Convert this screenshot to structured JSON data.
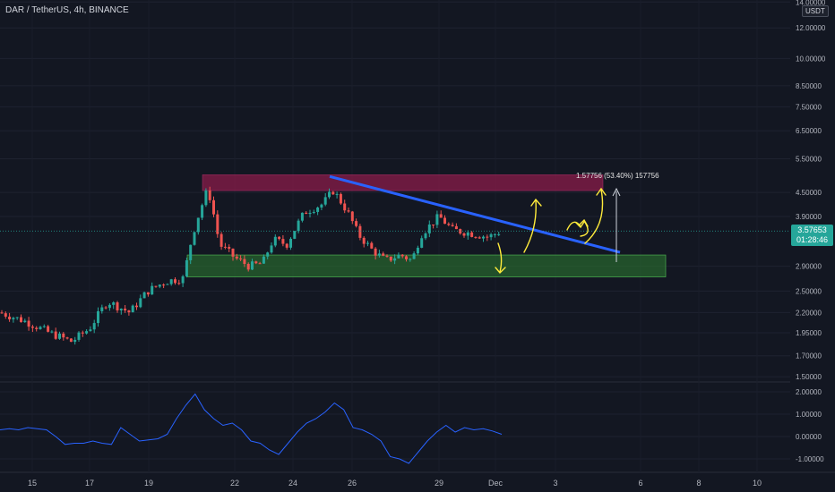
{
  "header": {
    "title": "DAR / TetherUS, 4h, BINANCE",
    "currency": "USDT"
  },
  "current_price": {
    "value": "3.57653",
    "countdown": "01:28:46",
    "color": "#26a69a"
  },
  "measure_label": "1.57756 (53.40%) 157756",
  "colors": {
    "background": "#131722",
    "up": "#26a69a",
    "down": "#ef5350",
    "resistance_zone": "#8a1c4a",
    "support_zone": "#2e7d32",
    "trendline": "#2962ff",
    "annotations": "#ffeb3b",
    "indicator": "#2962ff"
  },
  "chart_data": [
    {
      "type": "candlestick",
      "title": "DAR / TetherUS, 4h, BINANCE",
      "y_scale": "log",
      "y_ticks": [
        "14.00000",
        "12.00000",
        "10.00000",
        "8.50000",
        "7.50000",
        "6.50000",
        "5.50000",
        "4.50000",
        "3.90000",
        "2.90000",
        "2.50000",
        "2.20000",
        "1.95000",
        "1.70000",
        "1.50000"
      ],
      "x_ticks": [
        "15",
        "17",
        "19",
        "22",
        "24",
        "26",
        "29",
        "Dec",
        "3",
        "6",
        "8",
        "10"
      ],
      "ylim": [
        1.45,
        14.0
      ],
      "zones": [
        {
          "name": "resistance",
          "from": 4.55,
          "to": 5.0
        },
        {
          "name": "support",
          "from": 2.72,
          "to": 3.1
        }
      ],
      "trendline": {
        "from": {
          "x": "Nov 25",
          "y": 4.95
        },
        "to": {
          "x": "Dec 5",
          "y": 3.15
        }
      },
      "last_price": 3.57653,
      "measure": {
        "change": 1.57756,
        "percent": 53.4
      }
    },
    {
      "type": "line",
      "y_ticks": [
        "2.00000",
        "1.00000",
        "0.00000",
        "-1.00000"
      ],
      "ylim": [
        -1.3,
        2.1
      ],
      "series": [
        {
          "values": [
            0.3,
            0.35,
            0.3,
            0.4,
            0.35,
            0.3,
            0.0,
            -0.35,
            -0.3,
            -0.3,
            -0.2,
            -0.3,
            -0.35,
            0.4,
            0.1,
            -0.2,
            -0.15,
            -0.1,
            0.1,
            0.8,
            1.4,
            1.9,
            1.2,
            0.8,
            0.5,
            0.6,
            0.3,
            -0.2,
            -0.3,
            -0.6,
            -0.8,
            -0.3,
            0.2,
            0.6,
            0.8,
            1.1,
            1.5,
            1.2,
            0.4,
            0.3,
            0.1,
            -0.2,
            -0.9,
            -1.0,
            -1.2,
            -0.7,
            -0.2,
            0.2,
            0.5,
            0.2,
            0.4,
            0.3,
            0.35,
            0.25,
            0.1
          ]
        }
      ]
    }
  ]
}
